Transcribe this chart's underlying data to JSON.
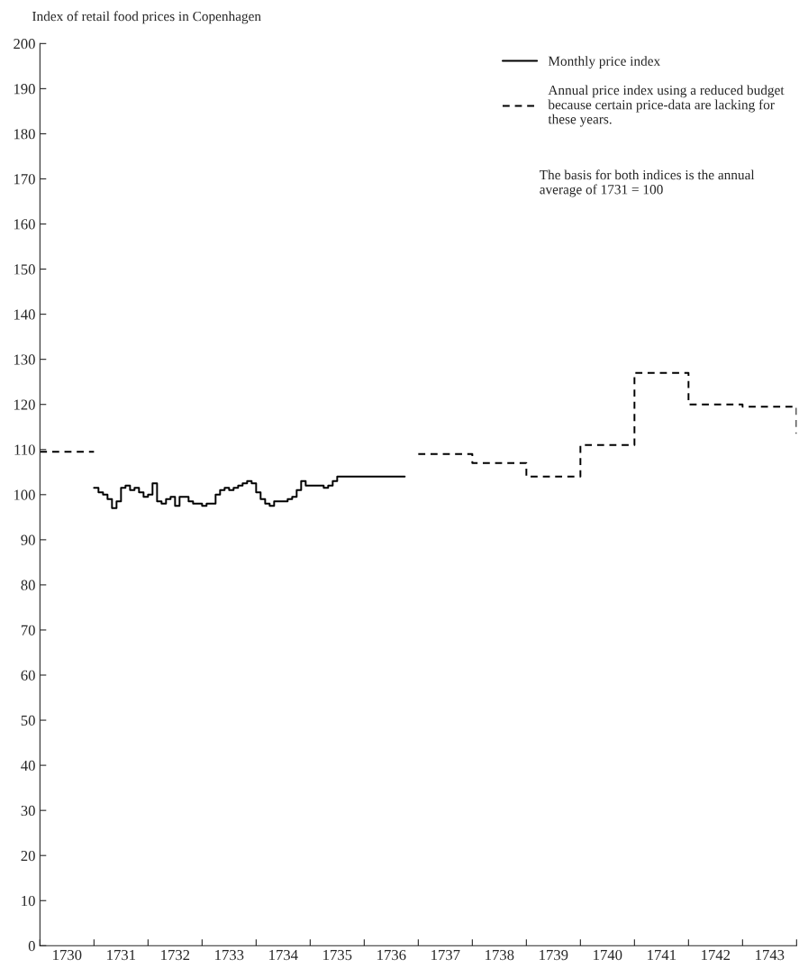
{
  "chart_data": {
    "type": "step",
    "title": "Index of retail food prices in Copenhagen",
    "series": [
      {
        "name": "Monthly price index",
        "color": "#000000",
        "line_style": "solid",
        "x": [
          1731.0,
          1731.083,
          1731.167,
          1731.25,
          1731.333,
          1731.417,
          1731.5,
          1731.583,
          1731.667,
          1731.75,
          1731.833,
          1731.917,
          1732.0,
          1732.083,
          1732.167,
          1732.25,
          1732.333,
          1732.417,
          1732.5,
          1732.583,
          1732.667,
          1732.75,
          1732.833,
          1732.917,
          1733.0,
          1733.083,
          1733.167,
          1733.25,
          1733.333,
          1733.417,
          1733.5,
          1733.583,
          1733.667,
          1733.75,
          1733.833,
          1733.917,
          1734.0,
          1734.083,
          1734.167,
          1734.25,
          1734.333,
          1734.417,
          1734.5,
          1734.583,
          1734.667,
          1734.75,
          1734.833,
          1734.917,
          1735.0,
          1735.083,
          1735.167,
          1735.25,
          1735.333,
          1735.417,
          1735.5,
          1735.583,
          1736.75
        ],
        "values": [
          101.5,
          100.5,
          100,
          99,
          97,
          98.5,
          101.5,
          102,
          101,
          101.5,
          100.5,
          99.5,
          100,
          102.5,
          98.5,
          98,
          99,
          99.5,
          97.5,
          99.5,
          99.5,
          98.5,
          98,
          98,
          97.5,
          98,
          98,
          100,
          101,
          101.5,
          101,
          101.5,
          102,
          102.5,
          103,
          102.5,
          100.5,
          99,
          98,
          97.5,
          98.5,
          98.5,
          98.5,
          99,
          99.5,
          101,
          103,
          102,
          102,
          102,
          102,
          101.5,
          102,
          103,
          104,
          104,
          104
        ]
      },
      {
        "name": "Annual price index using a reduced budget\nbecause certain price-data are lacking for\nthese years.",
        "color": "#000000",
        "line_style": "dashed",
        "x": [
          1730,
          1731,
          1737,
          1738,
          1739,
          1740,
          1741,
          1742,
          1743,
          1744
        ],
        "values": [
          109.5,
          null,
          109,
          107,
          104,
          111,
          127,
          120,
          119.5,
          113.5
        ]
      }
    ],
    "xlim": [
      1730,
      1744
    ],
    "xticks": [
      {
        "value": 1730,
        "label": null
      },
      {
        "value": 1730.5,
        "label": "1730"
      },
      {
        "value": 1731,
        "label": null
      },
      {
        "value": 1731.5,
        "label": "1731"
      },
      {
        "value": 1732,
        "label": null
      },
      {
        "value": 1732.5,
        "label": "1732"
      },
      {
        "value": 1733,
        "label": null
      },
      {
        "value": 1733.5,
        "label": "1733"
      },
      {
        "value": 1734,
        "label": null
      },
      {
        "value": 1734.5,
        "label": "1734"
      },
      {
        "value": 1735,
        "label": null
      },
      {
        "value": 1735.5,
        "label": "1735"
      },
      {
        "value": 1736,
        "label": null
      },
      {
        "value": 1736.5,
        "label": "1736"
      },
      {
        "value": 1737,
        "label": null
      },
      {
        "value": 1737.5,
        "label": "1737"
      },
      {
        "value": 1738,
        "label": null
      },
      {
        "value": 1738.5,
        "label": "1738"
      },
      {
        "value": 1739,
        "label": null
      },
      {
        "value": 1739.5,
        "label": "1739"
      },
      {
        "value": 1740,
        "label": null
      },
      {
        "value": 1740.5,
        "label": "1740"
      },
      {
        "value": 1741,
        "label": null
      },
      {
        "value": 1741.5,
        "label": "1741"
      },
      {
        "value": 1742,
        "label": null
      },
      {
        "value": 1742.5,
        "label": "1742"
      },
      {
        "value": 1743,
        "label": null
      },
      {
        "value": 1743.5,
        "label": "1743"
      },
      {
        "value": 1744,
        "label": null
      }
    ],
    "ylim": [
      0,
      200
    ],
    "yticks": [
      0,
      10,
      20,
      30,
      40,
      50,
      60,
      70,
      80,
      90,
      100,
      110,
      120,
      130,
      140,
      150,
      160,
      170,
      180,
      190,
      200
    ],
    "grid": false,
    "legend": "top right",
    "annotations": [
      "The basis for both indices is the annual\naverage of 1731 = 100"
    ]
  }
}
